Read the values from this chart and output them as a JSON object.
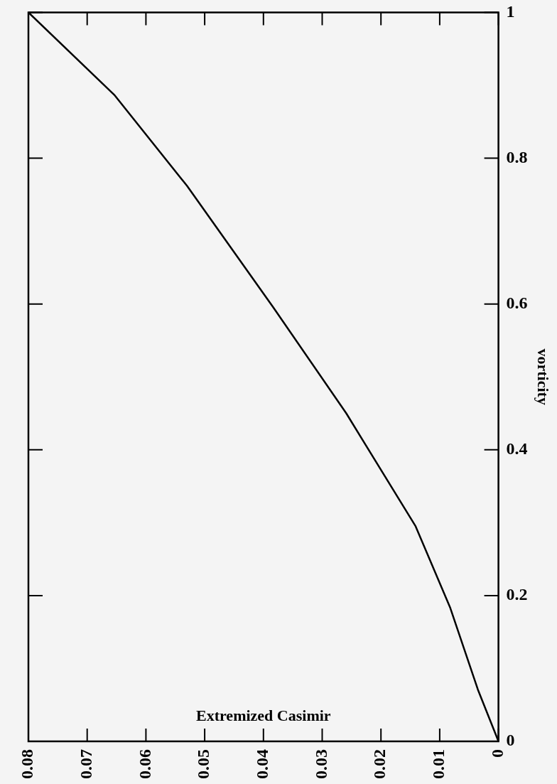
{
  "chart_data": {
    "type": "line",
    "xlabel": "Extremized Casimir",
    "ylabel": "vorticity",
    "x": [
      0.08,
      0.0654,
      0.053,
      0.0383,
      0.0259,
      0.0141,
      0.0082,
      0.0035,
      0
    ],
    "series": [
      {
        "color": "#000000",
        "values": [
          1,
          0.887,
          0.762,
          0.595,
          0.45,
          0.295,
          0.183,
          0.071,
          0
        ]
      }
    ],
    "xlim": [
      0.08,
      0
    ],
    "xticks": [
      0.08,
      0.07,
      0.06,
      0.05,
      0.04,
      0.03,
      0.02,
      0.01,
      0
    ],
    "ylim": [
      0,
      1
    ],
    "yticks": [
      0,
      0.2,
      0.4,
      0.6,
      0.8,
      1
    ],
    "marker": "none",
    "line_style": "solid"
  }
}
